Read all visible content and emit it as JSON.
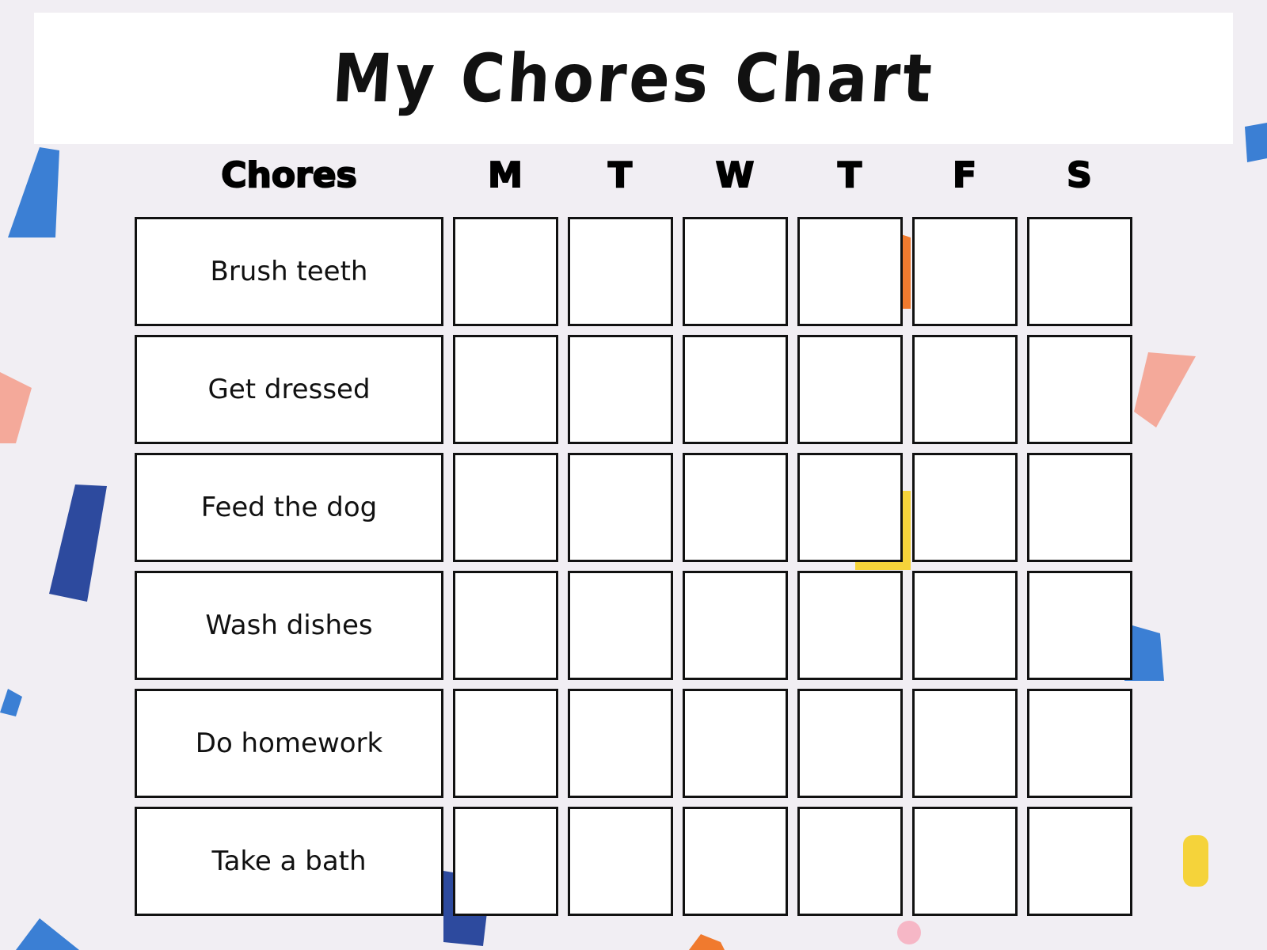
{
  "title": "My Chores Chart",
  "header": {
    "chores_label": "Chores",
    "days": [
      "M",
      "T",
      "W",
      "T",
      "F",
      "S"
    ]
  },
  "chores": [
    "Brush teeth",
    "Get dressed",
    "Feed the dog",
    "Wash dishes",
    "Do homework",
    "Take a bath"
  ],
  "colors": {
    "blue": "#3b7fd4",
    "navy": "#2d4a9e",
    "pink": "#f4a99a",
    "yellow": "#f5d33a",
    "orange": "#f07a2e",
    "background": "#f1eef3"
  }
}
